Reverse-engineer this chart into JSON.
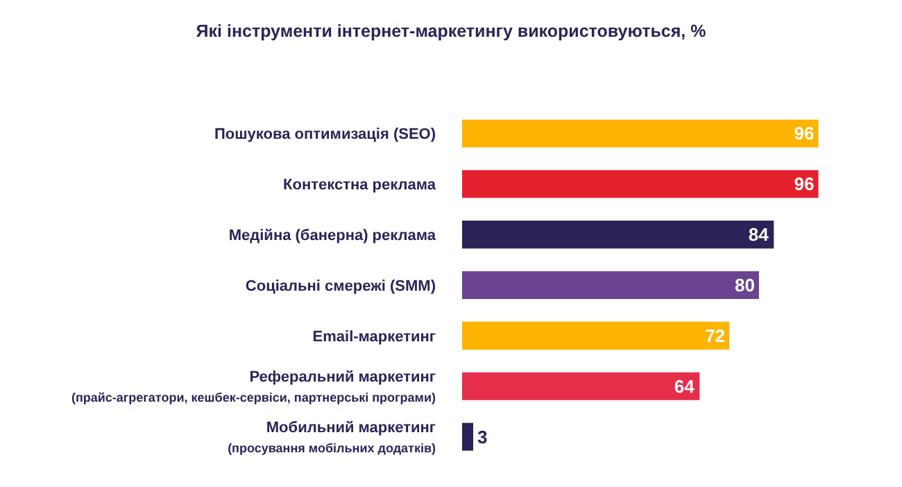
{
  "chart_data": {
    "type": "bar",
    "orientation": "horizontal",
    "title": "Які інструменти інтернет-маркетингу використовуються, %",
    "categories": [
      "Пошукова оптимизація (SEO)",
      "Контекстна реклама",
      "Медійна (банерна) реклама",
      "Соціальні смережі (SMM)",
      "Email-маркетинг",
      "Реферальний маркетинг\n(прайс-агрегатори, кешбек-сервіси, партнерські програми)",
      "Мобильний маркетинг\n(просування мобільних додатків)"
    ],
    "values": [
      96,
      96,
      84,
      80,
      72,
      64,
      3
    ],
    "colors": [
      "#fdb300",
      "#e5202e",
      "#2b2357",
      "#6a4391",
      "#fdb300",
      "#e52e4a",
      "#2b2357"
    ],
    "data_labels": true
  }
}
